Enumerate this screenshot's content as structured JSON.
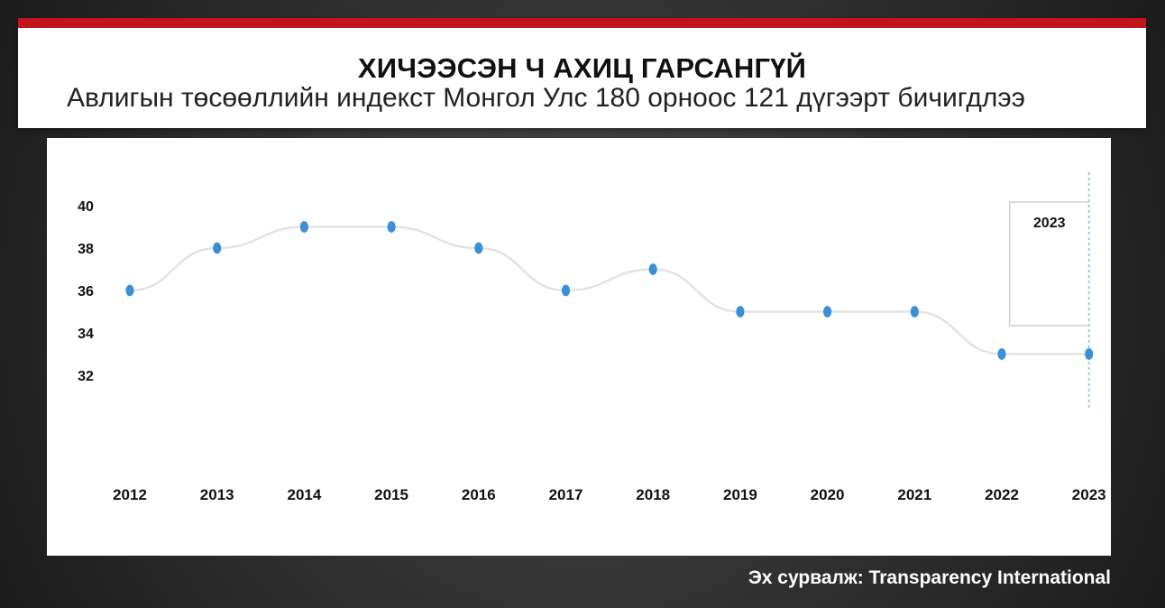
{
  "header": {
    "title": "ХИЧЭЭСЭН Ч АХИЦ ГАРСАНГҮЙ",
    "subtitle": "Авлигын төсөөллийн индекст Монгол Улс 180 орноос 121 дүгээрт бичигдлээ"
  },
  "source": "Эх сурвалж: Transparency International",
  "colors": {
    "accent": "#c4141b",
    "point": "#3a8fd6",
    "line": "#e3e3e3",
    "highlight_line": "#9cc9ea",
    "text": "#111111"
  },
  "chart_data": {
    "type": "line",
    "title": "ХИЧЭЭСЭН Ч АХИЦ ГАРСАНГҮЙ",
    "subtitle": "Авлигын төсөөллийн индекст Монгол Улс 180 орноос 121 дүгээрт бичигдлээ",
    "categories": [
      "2012",
      "2013",
      "2014",
      "2015",
      "2016",
      "2017",
      "2018",
      "2019",
      "2020",
      "2021",
      "2022",
      "2023"
    ],
    "values": [
      36,
      38,
      39,
      39,
      38,
      36,
      37,
      35,
      35,
      35,
      33,
      33
    ],
    "ylim": [
      30,
      41
    ],
    "yticks": [
      40,
      38,
      36,
      34,
      32
    ],
    "xlabel": "",
    "ylabel": "",
    "grid": false,
    "legend": "none",
    "highlight": {
      "category": "2023",
      "label": "2023"
    }
  }
}
